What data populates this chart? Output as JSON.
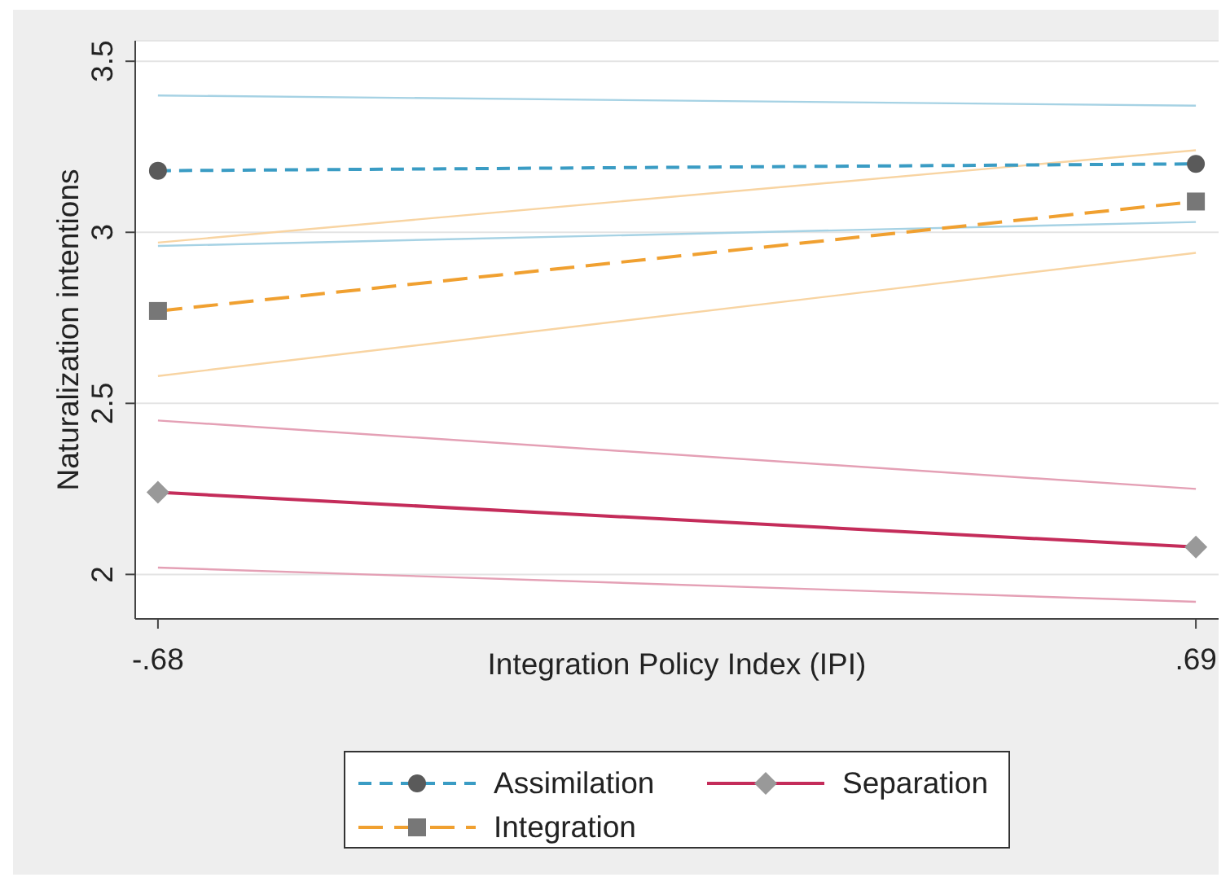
{
  "chart_data": {
    "type": "line",
    "xlabel": "Integration Policy Index (IPI)",
    "ylabel": "Naturalization intentions",
    "x": [
      -0.68,
      0.69
    ],
    "xlim": [
      -0.71,
      0.72
    ],
    "xticks": [
      {
        "value": -0.68,
        "label": "-.68"
      },
      {
        "value": 0.69,
        "label": ".69"
      }
    ],
    "ylim": [
      1.87,
      3.56
    ],
    "yticks": [
      2,
      2.5,
      3,
      3.5
    ],
    "grid": "y",
    "legend": "bottom",
    "series": [
      {
        "color": "#a6d2e4",
        "values": [
          3.4,
          3.37
        ]
      },
      {
        "color": "#a6d2e4",
        "values": [
          2.96,
          3.03
        ]
      },
      {
        "color": "#e4a0b5",
        "values": [
          2.45,
          2.25
        ]
      },
      {
        "color": "#e4a0b5",
        "values": [
          2.02,
          1.92
        ]
      },
      {
        "color": "#f8d4a2",
        "values": [
          2.97,
          3.24
        ]
      },
      {
        "color": "#f8d4a2",
        "values": [
          2.58,
          2.94
        ]
      },
      {
        "name": "Assimilation",
        "color": "#3a9cc4",
        "values": [
          3.18,
          3.2
        ],
        "marker": "circle",
        "line_style": "dashed"
      },
      {
        "name": "Separation",
        "color": "#c42c5a",
        "values": [
          2.24,
          2.08
        ],
        "marker": "diamond",
        "line_style": "solid"
      },
      {
        "name": "Integration",
        "color": "#f0a030",
        "values": [
          2.77,
          3.09
        ],
        "marker": "square",
        "line_style": "dashed"
      }
    ]
  }
}
